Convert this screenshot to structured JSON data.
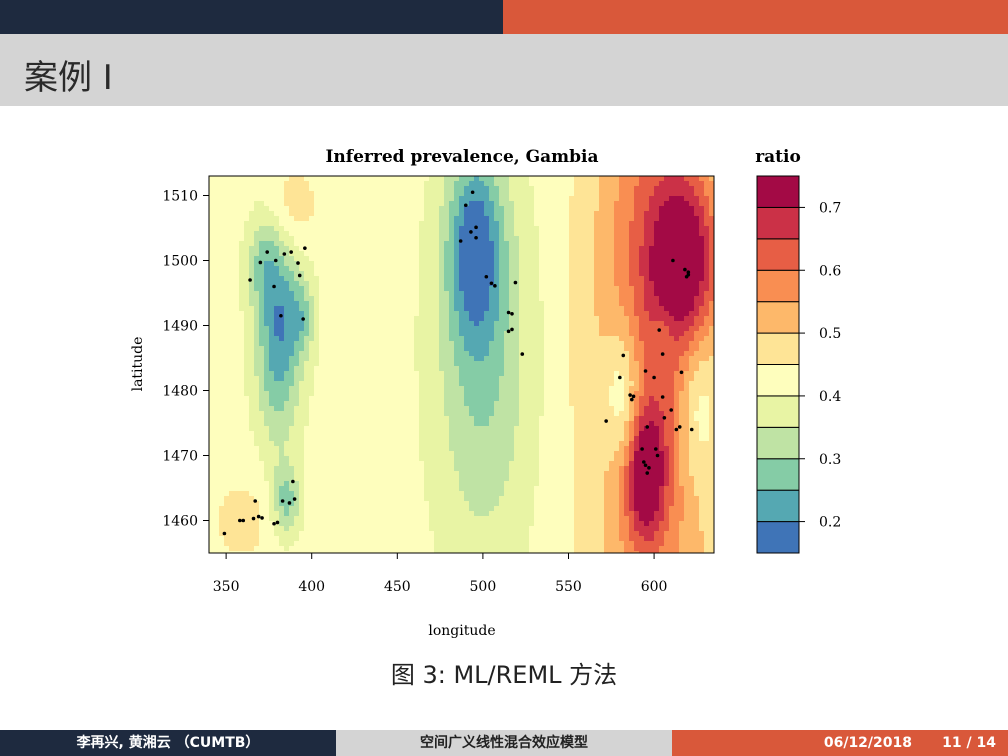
{
  "slide": {
    "title": "案例 I",
    "caption": "图 3: ML/REML 方法",
    "footer": {
      "authors": "李再兴, 黄湘云 （CUMTB）",
      "center": "空间广义线性混合效应模型",
      "date": "06/12/2018",
      "page": "11 / 14"
    }
  },
  "colors": {
    "top_left": "#1e2a3f",
    "top_right": "#d9583a",
    "title_band": "#d4d4d4"
  },
  "chart_data": {
    "type": "heatmap",
    "title": "Inferred prevalence, Gambia",
    "xlabel": "longitude",
    "ylabel": "latitude",
    "xlim": [
      340,
      635
    ],
    "ylim": [
      1455,
      1513
    ],
    "xticks": [
      350,
      400,
      450,
      500,
      550,
      600
    ],
    "yticks": [
      1460,
      1470,
      1480,
      1490,
      1500,
      1510
    ],
    "legend": {
      "title": "ratio",
      "placement": "right",
      "ticks": [
        0.2,
        0.3,
        0.4,
        0.5,
        0.6,
        0.7
      ],
      "breaks": [
        0.15,
        0.2,
        0.25,
        0.3,
        0.35,
        0.4,
        0.45,
        0.5,
        0.55,
        0.6,
        0.65,
        0.7,
        0.75
      ],
      "colors": [
        "#3f74b7",
        "#55a8b2",
        "#85cca6",
        "#bfe3a4",
        "#e8f4a4",
        "#fefebd",
        "#fee496",
        "#fdb86a",
        "#f98e52",
        "#e75e45",
        "#cb3147",
        "#a30a45"
      ]
    },
    "base_level": 0.42,
    "surface_components": [
      {
        "x": 382,
        "y": 1492,
        "amp": -0.18,
        "sx": 10,
        "sy": 8
      },
      {
        "x": 372,
        "y": 1500,
        "amp": -0.1,
        "sx": 7,
        "sy": 5
      },
      {
        "x": 395,
        "y": 1491,
        "amp": -0.08,
        "sx": 5,
        "sy": 4
      },
      {
        "x": 380,
        "y": 1480,
        "amp": -0.1,
        "sx": 9,
        "sy": 8
      },
      {
        "x": 385,
        "y": 1463,
        "amp": -0.14,
        "sx": 6,
        "sy": 4
      },
      {
        "x": 390,
        "y": 1508,
        "amp": 0.06,
        "sx": 10,
        "sy": 5
      },
      {
        "x": 360,
        "y": 1460,
        "amp": 0.05,
        "sx": 14,
        "sy": 5
      },
      {
        "x": 495,
        "y": 1502,
        "amp": -0.2,
        "sx": 11,
        "sy": 10
      },
      {
        "x": 500,
        "y": 1485,
        "amp": -0.13,
        "sx": 20,
        "sy": 22
      },
      {
        "x": 600,
        "y": 1490,
        "amp": 0.2,
        "sx": 26,
        "sy": 45
      },
      {
        "x": 618,
        "y": 1500,
        "amp": 0.24,
        "sx": 14,
        "sy": 9
      },
      {
        "x": 595,
        "y": 1467,
        "amp": 0.23,
        "sx": 8,
        "sy": 7
      },
      {
        "x": 582,
        "y": 1479,
        "amp": -0.14,
        "sx": 8,
        "sy": 8
      },
      {
        "x": 625,
        "y": 1478,
        "amp": -0.1,
        "sx": 8,
        "sy": 9
      },
      {
        "x": 605,
        "y": 1488,
        "amp": -0.06,
        "sx": 5,
        "sy": 4
      }
    ],
    "points": [
      [
        349,
        1458
      ],
      [
        358,
        1460
      ],
      [
        360,
        1460
      ],
      [
        366,
        1460.3
      ],
      [
        369,
        1460.6
      ],
      [
        371,
        1460.4
      ],
      [
        367,
        1463
      ],
      [
        378,
        1459.5
      ],
      [
        380,
        1459.7
      ],
      [
        383,
        1463
      ],
      [
        387,
        1462.7
      ],
      [
        390,
        1463.3
      ],
      [
        389,
        1466
      ],
      [
        364,
        1497
      ],
      [
        370,
        1499.7
      ],
      [
        374,
        1501.3
      ],
      [
        378,
        1496
      ],
      [
        379,
        1500
      ],
      [
        384,
        1501
      ],
      [
        388,
        1501.3
      ],
      [
        392,
        1499.6
      ],
      [
        396,
        1501.9
      ],
      [
        393,
        1497.7
      ],
      [
        382,
        1491.5
      ],
      [
        395,
        1491
      ],
      [
        487,
        1503
      ],
      [
        490,
        1508.5
      ],
      [
        493,
        1504.4
      ],
      [
        494,
        1510.5
      ],
      [
        496,
        1505.1
      ],
      [
        496,
        1503.5
      ],
      [
        502,
        1497.5
      ],
      [
        505,
        1496.5
      ],
      [
        507,
        1496.1
      ],
      [
        515,
        1492
      ],
      [
        517,
        1491.8
      ],
      [
        519,
        1496.6
      ],
      [
        515,
        1489.1
      ],
      [
        517,
        1489.4
      ],
      [
        523,
        1485.6
      ],
      [
        572,
        1475.3
      ],
      [
        580,
        1482
      ],
      [
        582,
        1485.4
      ],
      [
        586,
        1479.3
      ],
      [
        587,
        1478.6
      ],
      [
        588,
        1479.1
      ],
      [
        593,
        1471
      ],
      [
        595,
        1483
      ],
      [
        596,
        1474.4
      ],
      [
        594,
        1469
      ],
      [
        595,
        1468.5
      ],
      [
        596,
        1467.3
      ],
      [
        597,
        1468.1
      ],
      [
        600,
        1482
      ],
      [
        601,
        1471
      ],
      [
        602,
        1470
      ],
      [
        603,
        1489.3
      ],
      [
        605,
        1485.6
      ],
      [
        605,
        1479
      ],
      [
        606,
        1475.8
      ],
      [
        610,
        1477
      ],
      [
        613,
        1474
      ],
      [
        615,
        1474.4
      ],
      [
        616,
        1482.8
      ],
      [
        622,
        1474
      ],
      [
        611,
        1500
      ],
      [
        618,
        1498.6
      ],
      [
        619,
        1497.5
      ],
      [
        620,
        1498.2
      ],
      [
        620,
        1497.8
      ]
    ]
  }
}
